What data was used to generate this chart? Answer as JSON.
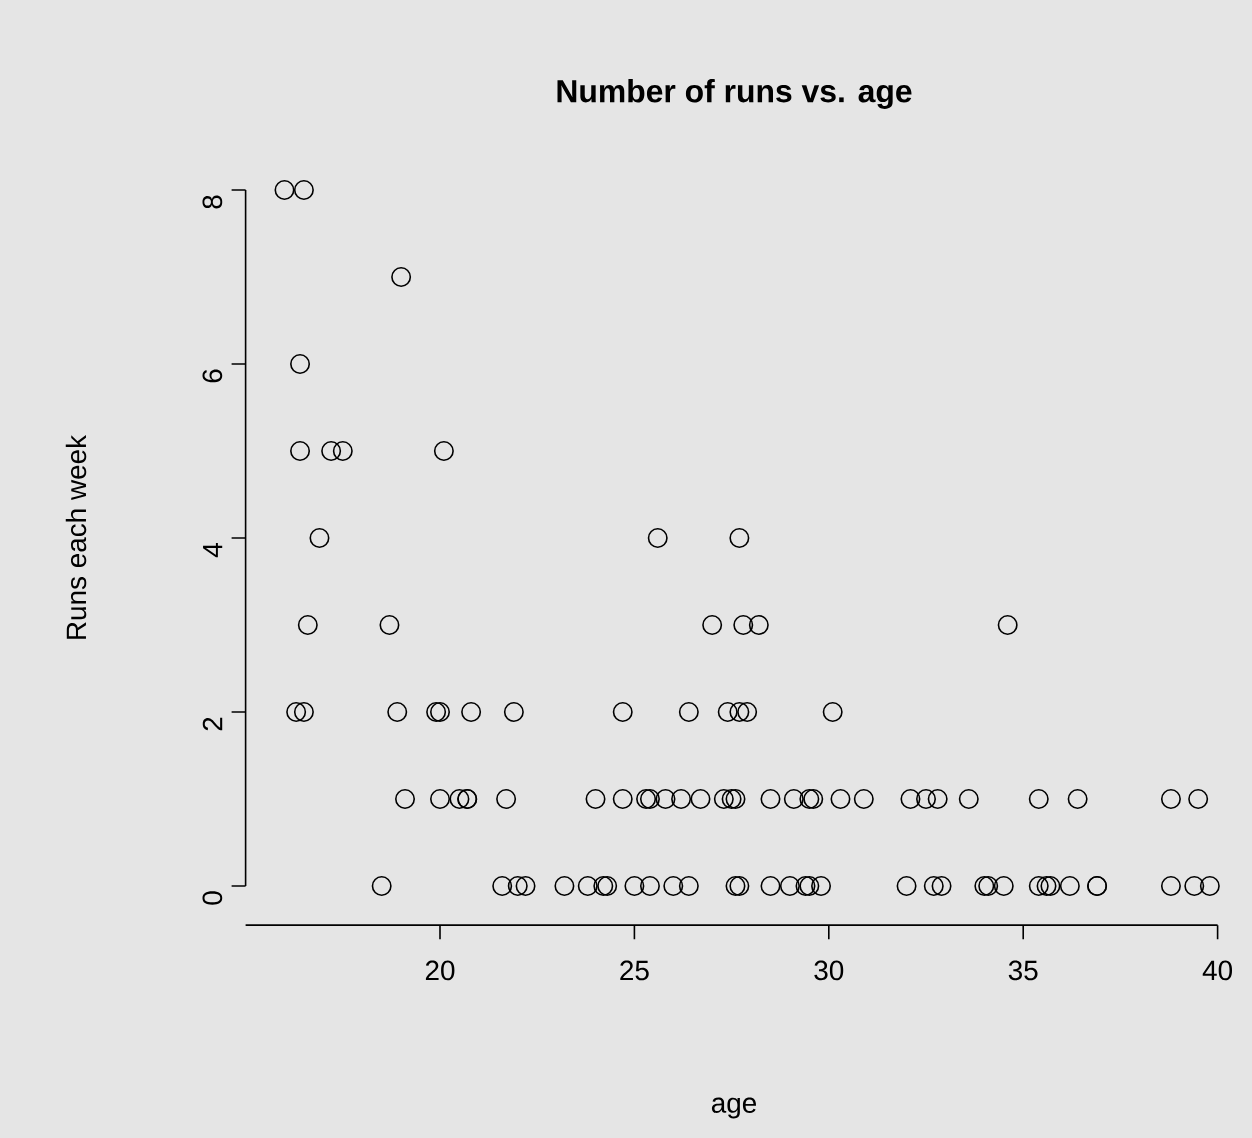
{
  "chart_data": {
    "type": "scatter",
    "title": "Number of runs vs. age",
    "xlabel": "age",
    "ylabel": "Runs each week",
    "x": [
      16.0,
      16.5,
      19.0,
      16.4,
      16.4,
      17.2,
      17.5,
      20.1,
      16.9,
      25.6,
      27.7,
      16.6,
      18.7,
      27.0,
      27.8,
      28.2,
      34.6,
      16.3,
      16.5,
      18.9,
      19.9,
      20.0,
      20.8,
      21.9,
      24.7,
      26.4,
      27.4,
      27.7,
      27.9,
      30.1,
      19.1,
      20.0,
      20.5,
      20.7,
      20.7,
      21.7,
      24.0,
      24.7,
      25.3,
      25.4,
      25.8,
      26.2,
      26.7,
      27.3,
      27.5,
      27.6,
      28.5,
      29.1,
      29.5,
      29.6,
      30.3,
      30.9,
      32.1,
      32.5,
      32.8,
      33.6,
      35.4,
      36.4,
      38.8,
      39.5,
      18.5,
      21.6,
      22.0,
      22.2,
      23.2,
      23.8,
      24.2,
      24.3,
      25.0,
      25.4,
      26.0,
      26.4,
      27.6,
      27.7,
      28.5,
      29.0,
      29.4,
      29.5,
      29.8,
      32.0,
      32.7,
      32.9,
      34.0,
      34.1,
      34.5,
      35.4,
      35.6,
      35.7,
      36.2,
      36.9,
      36.9,
      38.8,
      39.4,
      39.8
    ],
    "values": [
      8,
      8,
      7,
      6,
      5,
      5,
      5,
      5,
      4,
      4,
      4,
      3,
      3,
      3,
      3,
      3,
      3,
      2,
      2,
      2,
      2,
      2,
      2,
      2,
      2,
      2,
      2,
      2,
      2,
      2,
      1,
      1,
      1,
      1,
      1,
      1,
      1,
      1,
      1,
      1,
      1,
      1,
      1,
      1,
      1,
      1,
      1,
      1,
      1,
      1,
      1,
      1,
      1,
      1,
      1,
      1,
      1,
      1,
      1,
      1,
      0,
      0,
      0,
      0,
      0,
      0,
      0,
      0,
      0,
      0,
      0,
      0,
      0,
      0,
      0,
      0,
      0,
      0,
      0,
      0,
      0,
      0,
      0,
      0,
      0,
      0,
      0,
      0,
      0,
      0,
      0,
      0,
      0,
      0
    ],
    "color": "#000000",
    "marker": "circle",
    "xlim": [
      15.0,
      40.8
    ],
    "ylim": [
      -0.45,
      8
    ],
    "xticks": [
      20,
      25,
      30,
      35,
      40
    ],
    "yticks": [
      0,
      2,
      4,
      6,
      8
    ]
  }
}
